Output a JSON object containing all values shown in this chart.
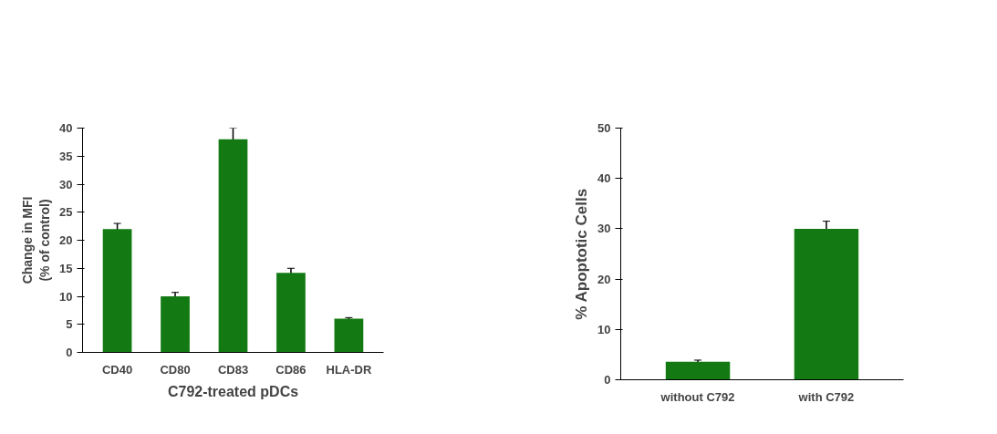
{
  "chart_data": [
    {
      "type": "bar",
      "xlabel": "C792-treated pDCs",
      "ylabel": "Change in MFI\n(% of control)",
      "categories": [
        "CD40",
        "CD80",
        "CD83",
        "CD86",
        "HLA-DR"
      ],
      "values": [
        22,
        10,
        38,
        14.2,
        6
      ],
      "errors": [
        1,
        0.7,
        2,
        0.8,
        0.2
      ],
      "color": "#137a13",
      "ylim": [
        0,
        40
      ],
      "yticks": [
        0,
        5,
        10,
        15,
        20,
        25,
        30,
        35,
        40
      ],
      "grid": false
    },
    {
      "type": "bar",
      "ylabel": "% Apoptotic Cells",
      "categories": [
        "without C792",
        "with C792"
      ],
      "values": [
        3.6,
        30
      ],
      "errors": [
        0.3,
        1.5
      ],
      "color": "#137a13",
      "ylim": [
        0,
        50
      ],
      "yticks": [
        0,
        10,
        20,
        30,
        40,
        50
      ],
      "grid": false
    }
  ]
}
